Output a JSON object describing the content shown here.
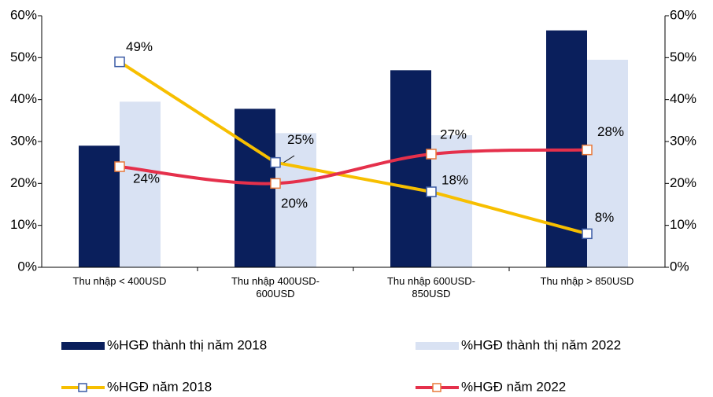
{
  "chart_data": {
    "type": "bar",
    "categories": [
      "Thu nhập < 400USD",
      "Thu nhập 400USD-600USD",
      "Thu nhập 600USD-850USD",
      "Thu nhập > 850USD"
    ],
    "ylim": [
      0,
      60
    ],
    "yticks": [
      {
        "value": 0,
        "label": "0%"
      },
      {
        "value": 10,
        "label": "10%"
      },
      {
        "value": 20,
        "label": "20%"
      },
      {
        "value": 30,
        "label": "30%"
      },
      {
        "value": 40,
        "label": "40%"
      },
      {
        "value": 50,
        "label": "50%"
      },
      {
        "value": 60,
        "label": "60%"
      }
    ],
    "y2lim": [
      0,
      60
    ],
    "y2ticks": [
      {
        "value": 0,
        "label": "0%"
      },
      {
        "value": 10,
        "label": "10%"
      },
      {
        "value": 20,
        "label": "20%"
      },
      {
        "value": 30,
        "label": "30%"
      },
      {
        "value": 40,
        "label": "40%"
      },
      {
        "value": 50,
        "label": "50%"
      },
      {
        "value": 60,
        "label": "60%"
      }
    ],
    "series": [
      {
        "name": "%HGĐ thành thị năm 2018",
        "type": "bar",
        "color": "#0a1f5c",
        "values": [
          29,
          37.8,
          47,
          56.5
        ]
      },
      {
        "name": "%HGĐ thành thị năm 2022",
        "type": "bar",
        "color": "#d9e2f3",
        "values": [
          39.5,
          32,
          31.5,
          49.5
        ]
      },
      {
        "name": "%HGĐ năm 2018",
        "type": "line",
        "axis": "y2",
        "color": "#f7bf00",
        "marker_color": "#3b5ba5",
        "values": [
          49,
          25,
          18,
          8
        ],
        "value_labels": [
          "49%",
          "25%",
          "18%",
          "8%"
        ]
      },
      {
        "name": "%HGĐ năm 2022",
        "type": "line",
        "axis": "y2",
        "smooth": true,
        "color": "#e5304b",
        "marker_color": "#e8793a",
        "values": [
          24,
          20,
          27,
          28
        ],
        "value_labels": [
          "24%",
          "20%",
          "27%",
          "28%"
        ]
      }
    ]
  }
}
